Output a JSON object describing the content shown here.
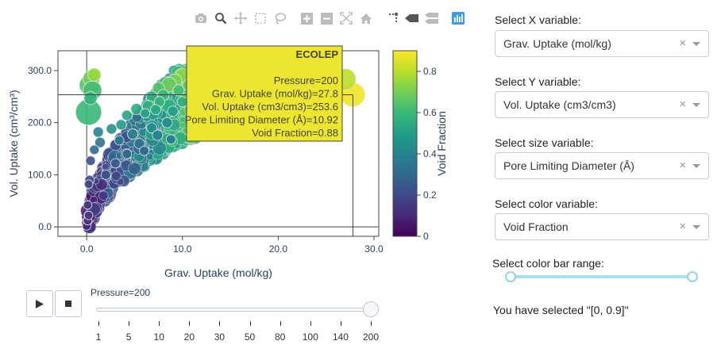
{
  "modebar": {
    "icons": [
      "camera-icon",
      "zoom-icon",
      "pan-icon",
      "box-select-icon",
      "lasso-icon",
      "zoom-in-icon",
      "zoom-out-icon",
      "autoscale-icon",
      "home-icon",
      "spike-lines-icon",
      "hover-closest-icon",
      "hover-compare-icon",
      "plotly-logo-icon"
    ]
  },
  "chart_data": {
    "type": "scatter",
    "xlabel": "Grav. Uptake (mol/kg)",
    "ylabel": "Vol. Uptake (cm³/cm³)",
    "xlim": [
      -3,
      30.5
    ],
    "ylim": [
      -18,
      338
    ],
    "x_ticks": [
      0,
      10,
      20,
      30
    ],
    "x_tick_labels": [
      "0.0",
      "10.0",
      "20.0",
      "30.0"
    ],
    "y_ticks": [
      0,
      100,
      200,
      300
    ],
    "y_tick_labels": [
      "0.0",
      "100.0",
      "200.0",
      "300.0"
    ],
    "size_variable": "Pore Limiting Diameter (Å)",
    "color_variable": "Void Fraction",
    "colorbar": {
      "title": "Void Fraction",
      "range": [
        0,
        0.9
      ],
      "ticks": [
        0,
        0.2,
        0.4,
        0.6,
        0.8
      ],
      "tick_labels": [
        "0",
        "0.2",
        "0.4",
        "0.6",
        "0.8"
      ],
      "colorscale": "Viridis"
    },
    "crosshair": {
      "x": 27.8,
      "y": 253.6
    },
    "hover": {
      "title": "ECOLEP",
      "lines": [
        "Pressure=200",
        "Grav. Uptake (mol/kg)=27.8",
        "Vol. Uptake (cm3/cm3)=253.6",
        "Pore Limiting Diameter (Å)=10.92",
        "Void Fraction=0.88"
      ]
    },
    "points": [
      {
        "x": 27.8,
        "y": 253.6,
        "d": 10.92,
        "c": 0.88
      },
      {
        "x": 27.0,
        "y": 283,
        "d": 9.5,
        "c": 0.8
      },
      {
        "x": 0.3,
        "y": 272,
        "d": 9.0,
        "c": 0.65
      },
      {
        "x": 0.5,
        "y": 285,
        "d": 7.0,
        "c": 0.7
      },
      {
        "x": 0.6,
        "y": 262,
        "d": 8.0,
        "c": 0.62
      },
      {
        "x": 0.2,
        "y": 220,
        "d": 12.0,
        "c": 0.6
      },
      {
        "x": 0.8,
        "y": 292,
        "d": 5.0,
        "c": 0.75
      },
      {
        "x": 0.4,
        "y": 247,
        "d": 5.0,
        "c": 0.58
      },
      {
        "x": 10.0,
        "y": 290,
        "d": 6.0,
        "c": 0.74
      },
      {
        "x": 11.5,
        "y": 285,
        "d": 7.0,
        "c": 0.72
      },
      {
        "x": 9.2,
        "y": 280,
        "d": 5.5,
        "c": 0.7
      },
      {
        "x": 8.6,
        "y": 273,
        "d": 6.0,
        "c": 0.69
      },
      {
        "x": 12.3,
        "y": 290,
        "d": 4.5,
        "c": 0.75
      },
      {
        "x": 14.0,
        "y": 288,
        "d": 5.0,
        "c": 0.77
      },
      {
        "x": 7.5,
        "y": 266,
        "d": 4.5,
        "c": 0.65
      },
      {
        "x": 10.6,
        "y": 272,
        "d": 4.0,
        "c": 0.66
      },
      {
        "x": 9.6,
        "y": 262,
        "d": 4.0,
        "c": 0.63
      },
      {
        "x": 11.2,
        "y": 265,
        "d": 4.5,
        "c": 0.68
      },
      {
        "x": 8.0,
        "y": 253,
        "d": 4.0,
        "c": 0.6
      },
      {
        "x": 6.8,
        "y": 250,
        "d": 4.0,
        "c": 0.58
      },
      {
        "x": 5.2,
        "y": 226,
        "d": 4.0,
        "c": 0.55
      },
      {
        "x": 6.4,
        "y": 232,
        "d": 4.0,
        "c": 0.57
      },
      {
        "x": 7.6,
        "y": 240,
        "d": 3.5,
        "c": 0.58
      },
      {
        "x": 4.2,
        "y": 214,
        "d": 3.5,
        "c": 0.52
      },
      {
        "x": 3.6,
        "y": 196,
        "d": 3.5,
        "c": 0.48
      },
      {
        "x": 6.1,
        "y": 218,
        "d": 3.0,
        "c": 0.52
      },
      {
        "x": 7.2,
        "y": 225,
        "d": 3.5,
        "c": 0.55
      },
      {
        "x": 2.6,
        "y": 188,
        "d": 3.5,
        "c": 0.45
      },
      {
        "x": 1.4,
        "y": 162,
        "d": 3.5,
        "c": 0.35
      },
      {
        "x": 1.2,
        "y": 182,
        "d": 3.5,
        "c": 0.4
      },
      {
        "x": 0.8,
        "y": 148,
        "d": 3.0,
        "c": 0.3
      },
      {
        "x": 0.4,
        "y": 127,
        "d": 3.0,
        "c": 0.22
      },
      {
        "x": 0.3,
        "y": 90,
        "d": 3.0,
        "c": 0.2
      },
      {
        "x": 0.2,
        "y": 82,
        "d": 2.5,
        "c": 0.18
      },
      {
        "x": 0.1,
        "y": 42,
        "d": 2.5,
        "c": 0.15
      },
      {
        "x": 0.0,
        "y": 2,
        "d": 2.5,
        "c": 0.1
      },
      {
        "x": 0.1,
        "y": 12,
        "d": 2.5,
        "c": 0.12
      },
      {
        "x": 0.2,
        "y": 22,
        "d": 2.5,
        "c": 0.15
      },
      {
        "x": 5.5,
        "y": 160,
        "d": 3.5,
        "c": 0.33
      },
      {
        "x": 6.0,
        "y": 146,
        "d": 3.0,
        "c": 0.3
      },
      {
        "x": 8.4,
        "y": 200,
        "d": 3.5,
        "c": 0.42
      },
      {
        "x": 9.0,
        "y": 222,
        "d": 3.5,
        "c": 0.5
      },
      {
        "x": 4.8,
        "y": 178,
        "d": 3.5,
        "c": 0.4
      },
      {
        "x": 3.4,
        "y": 166,
        "d": 3.0,
        "c": 0.36
      },
      {
        "x": 6.8,
        "y": 190,
        "d": 3.5,
        "c": 0.45
      },
      {
        "x": 10.0,
        "y": 240,
        "d": 3.5,
        "c": 0.56
      },
      {
        "x": 8.8,
        "y": 168,
        "d": 3.0,
        "c": 0.36
      },
      {
        "x": 7.4,
        "y": 176,
        "d": 3.5,
        "c": 0.4
      },
      {
        "x": 2.0,
        "y": 100,
        "d": 3.0,
        "c": 0.22
      },
      {
        "x": 3.0,
        "y": 122,
        "d": 3.0,
        "c": 0.26
      },
      {
        "x": 4.2,
        "y": 140,
        "d": 3.0,
        "c": 0.3
      }
    ],
    "note_cloud": false
  },
  "player": {
    "play_icon": "play-icon",
    "stop_icon": "stop-icon"
  },
  "slider": {
    "current_label": "Pressure=200",
    "steps": [
      "1",
      "5",
      "10",
      "20",
      "30",
      "50",
      "80",
      "100",
      "140",
      "200"
    ],
    "selected_index": 9
  },
  "controls": {
    "x_label": "Select X variable:",
    "x_value": "Grav. Uptake (mol/kg)",
    "y_label": "Select Y variable:",
    "y_value": "Vol. Uptake (cm3/cm3)",
    "size_label": "Select size variable:",
    "size_value": "Pore Limiting Diameter (Å)",
    "color_label": "Select color variable:",
    "color_value": "Void Fraction",
    "clear_glyph": "×",
    "range_label": "Select color bar range:",
    "range_value": [
      0,
      0.9
    ],
    "selected_text": "You have selected \"[0, 0.9]\""
  }
}
